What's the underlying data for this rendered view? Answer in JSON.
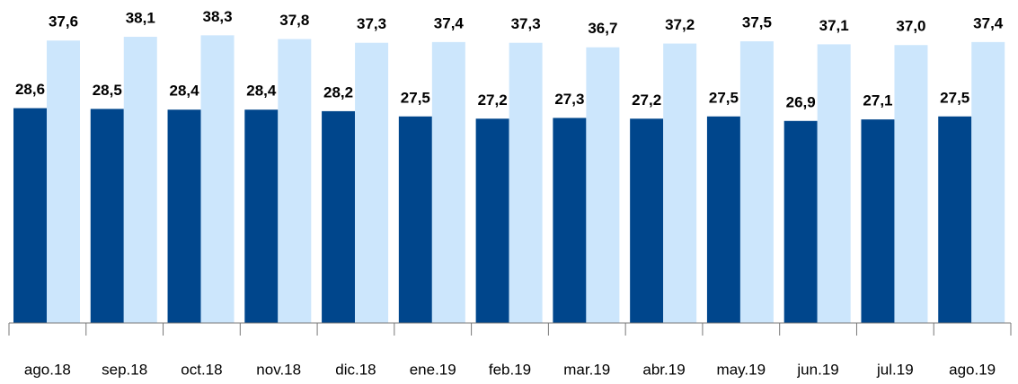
{
  "chart_data": {
    "type": "bar",
    "categories": [
      "ago.18",
      "sep.18",
      "oct.18",
      "nov.18",
      "dic.18",
      "ene.19",
      "feb.19",
      "mar.19",
      "abr.19",
      "may.19",
      "jun.19",
      "jul.19",
      "ago.19"
    ],
    "series": [
      {
        "color": "#00468c",
        "values": [
          28.6,
          28.5,
          28.4,
          28.4,
          28.2,
          27.5,
          27.2,
          27.3,
          27.2,
          27.5,
          26.9,
          27.1,
          27.5
        ],
        "value_labels": [
          "28,6",
          "28,5",
          "28,4",
          "28,4",
          "28,2",
          "27,5",
          "27,2",
          "27,3",
          "27,2",
          "27,5",
          "26,9",
          "27,1",
          "27,5"
        ]
      },
      {
        "color": "#cce6fc",
        "values": [
          37.6,
          38.1,
          38.3,
          37.8,
          37.3,
          37.4,
          37.3,
          36.7,
          37.2,
          37.5,
          37.1,
          37.0,
          37.4
        ],
        "value_labels": [
          "37,6",
          "38,1",
          "38,3",
          "37,8",
          "37,3",
          "37,4",
          "37,3",
          "36,7",
          "37,2",
          "37,5",
          "37,1",
          "37,0",
          "37,4"
        ]
      }
    ],
    "ylim": [
      0,
      43
    ]
  }
}
